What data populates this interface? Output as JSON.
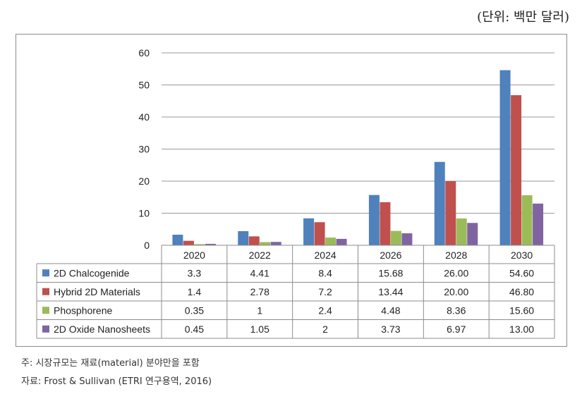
{
  "unit_label": "(단위: 백만 달러)",
  "notes": {
    "note1": "주: 시장규모는 재료(material) 분야만을 포함",
    "note2": "자료: Frost & Sullivan (ETRI 연구용역, 2016)"
  },
  "chart_data": {
    "type": "bar",
    "categories": [
      "2020",
      "2022",
      "2024",
      "2026",
      "2028",
      "2030"
    ],
    "ylim": [
      0,
      60
    ],
    "yticks": [
      0,
      10,
      20,
      30,
      40,
      50,
      60
    ],
    "grid": true,
    "legend": "data-table",
    "series": [
      {
        "name": "2D Chalcogenide",
        "color": "#4f81bd",
        "values": [
          3.3,
          4.41,
          8.4,
          15.68,
          26.0,
          54.6
        ],
        "labels": [
          "3.3",
          "4.41",
          "8.4",
          "15.68",
          "26.00",
          "54.60"
        ]
      },
      {
        "name": "Hybrid 2D Materials",
        "color": "#c0504d",
        "values": [
          1.4,
          2.78,
          7.2,
          13.44,
          20.0,
          46.8
        ],
        "labels": [
          "1.4",
          "2.78",
          "7.2",
          "13.44",
          "20.00",
          "46.80"
        ]
      },
      {
        "name": "Phosphorene",
        "color": "#9bbb59",
        "values": [
          0.35,
          1,
          2.4,
          4.48,
          8.36,
          15.6
        ],
        "labels": [
          "0.35",
          "1",
          "2.4",
          "4.48",
          "8.36",
          "15.60"
        ]
      },
      {
        "name": "2D Oxide Nanosheets",
        "color": "#8064a2",
        "values": [
          0.45,
          1.05,
          2,
          3.73,
          6.97,
          13.0
        ],
        "labels": [
          "0.45",
          "1.05",
          "2",
          "3.73",
          "6.97",
          "13.00"
        ]
      }
    ]
  }
}
